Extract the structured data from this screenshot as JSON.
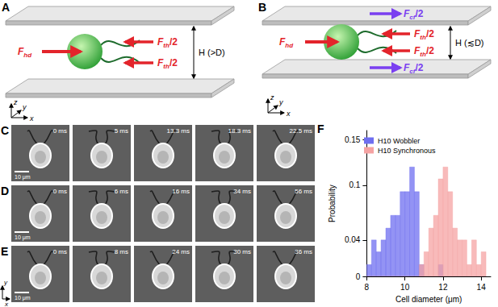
{
  "panels": {
    "A": {
      "label": "A",
      "drive_force": {
        "symbol": "F",
        "sub": "hd",
        "tail": ""
      },
      "thrust_forces": [
        {
          "symbol": "F",
          "sub": "th",
          "tail": "/2"
        },
        {
          "symbol": "F",
          "sub": "th",
          "tail": "/2"
        }
      ],
      "height_label": "H (>D)",
      "axes": [
        "x",
        "y",
        "z"
      ]
    },
    "B": {
      "label": "B",
      "drive_force": {
        "symbol": "F",
        "sub": "hd",
        "tail": ""
      },
      "thrust_forces": [
        {
          "symbol": "F",
          "sub": "th",
          "tail": "/2"
        },
        {
          "symbol": "F",
          "sub": "th",
          "tail": "/2"
        }
      ],
      "confinement_forces": [
        {
          "symbol": "F",
          "sub": "cf",
          "tail": "/2"
        },
        {
          "symbol": "F",
          "sub": "cf",
          "tail": "/2"
        }
      ],
      "height_label": "H (≲D)",
      "axes": [
        "x",
        "y",
        "z"
      ]
    },
    "C": {
      "label": "C",
      "times": [
        "0 ms",
        "5 ms",
        "13.3 ms",
        "18.3 ms",
        "22.5 ms"
      ],
      "scale_bar": "10 μm"
    },
    "D": {
      "label": "D",
      "times": [
        "0 ms",
        "6 ms",
        "16 ms",
        "34 ms",
        "56 ms"
      ],
      "scale_bar": "10 μm"
    },
    "E": {
      "label": "E",
      "times": [
        "0 ms",
        "8 ms",
        "24 ms",
        "30 ms",
        "36 ms"
      ],
      "scale_bar": "10 μm",
      "axes": [
        "y",
        "x"
      ]
    },
    "F": {
      "label": "F"
    }
  },
  "chart_data": {
    "type": "histogram",
    "xlabel": "Cell diameter (μm)",
    "ylabel": "Probability",
    "bins": [
      8,
      8.25,
      8.5,
      8.75,
      9,
      9.25,
      9.5,
      9.75,
      10,
      10.25,
      10.5,
      10.75,
      11,
      11.25,
      11.5,
      11.75,
      12,
      12.25,
      12.5,
      12.75,
      13,
      13.25,
      13.5,
      13.75,
      14,
      14.25
    ],
    "series": [
      {
        "name": "H10 Wobbler",
        "color": "#6f6ff0",
        "values": [
          0.013,
          0.04,
          0.027,
          0.04,
          0.053,
          0.067,
          0.067,
          0.093,
          0.093,
          0.12,
          0.093,
          0.013,
          0,
          0,
          0,
          0.013,
          0,
          0,
          0,
          0,
          0,
          0,
          0,
          0,
          0
        ]
      },
      {
        "name": "H10 Synchronous",
        "color": "#f5a3a3",
        "values": [
          0,
          0,
          0,
          0,
          0,
          0,
          0,
          0,
          0,
          0,
          0,
          0.013,
          0.027,
          0.053,
          0.067,
          0.107,
          0.12,
          0.093,
          0.053,
          0.04,
          0.04,
          0.013,
          0.04,
          0.013,
          0.027
        ]
      }
    ],
    "xlim": [
      8,
      14.5
    ],
    "xticks": [
      8,
      10,
      12,
      14
    ],
    "ylim": [
      0,
      0.16
    ],
    "yticks": [
      0,
      0.04,
      0.1,
      0.15
    ],
    "legend": "upper left",
    "grid": false
  }
}
